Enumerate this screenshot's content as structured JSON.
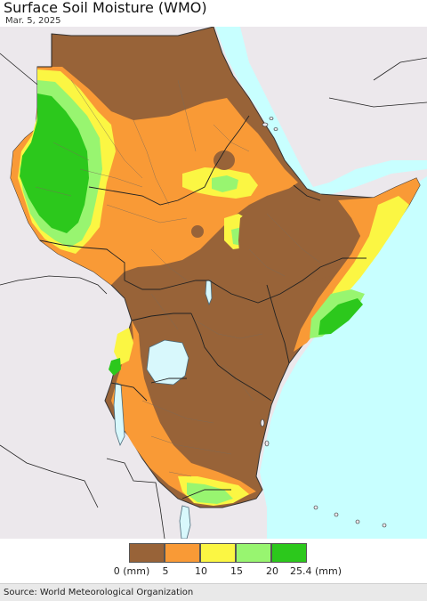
{
  "header": {
    "title": "Surface Soil Moisture (WMO)",
    "date": "Mar. 5, 2025"
  },
  "map": {
    "colors": {
      "land_outside": "#ece8ec",
      "sea": "#c8ffff",
      "lake": "#d8f8fc",
      "border": "#333333",
      "subborder": "#7a6a5a"
    }
  },
  "legend": {
    "ticks": [
      "0 (mm)",
      "5",
      "10",
      "15",
      "20",
      "25.4 (mm)"
    ],
    "classes": [
      {
        "range": "0-5 mm",
        "color": "#986338"
      },
      {
        "range": "5-10 mm",
        "color": "#f99a36"
      },
      {
        "range": "10-15 mm",
        "color": "#fbf643"
      },
      {
        "range": "15-20 mm",
        "color": "#98f570"
      },
      {
        "range": "20-25.4 mm",
        "color": "#2cc81c"
      }
    ]
  },
  "footer": {
    "source": "Source: World Meteorological Organization"
  }
}
